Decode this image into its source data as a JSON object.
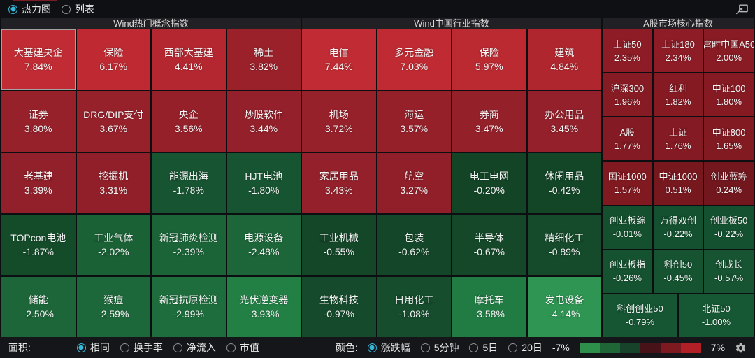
{
  "topbar": {
    "view_options": [
      {
        "label": "热力图",
        "selected": true
      },
      {
        "label": "列表",
        "selected": false
      }
    ]
  },
  "panels": [
    {
      "title": "Wind热门概念指数",
      "grid_columns": 4,
      "default_span": 1,
      "tiles": [
        {
          "name": "大基建央企",
          "value": "7.84%",
          "color": "#c12b33",
          "highlighted": true
        },
        {
          "name": "保险",
          "value": "6.17%",
          "color": "#bf2a32"
        },
        {
          "name": "西部大基建",
          "value": "4.41%",
          "color": "#b42730"
        },
        {
          "name": "稀土",
          "value": "3.82%",
          "color": "#9a202a"
        },
        {
          "name": "证券",
          "value": "3.80%",
          "color": "#97212b"
        },
        {
          "name": "DRG/DIP支付",
          "value": "3.67%",
          "color": "#96212b"
        },
        {
          "name": "央企",
          "value": "3.56%",
          "color": "#95202a"
        },
        {
          "name": "炒股软件",
          "value": "3.44%",
          "color": "#93202a"
        },
        {
          "name": "老基建",
          "value": "3.39%",
          "color": "#92202a"
        },
        {
          "name": "挖掘机",
          "value": "3.31%",
          "color": "#911f29"
        },
        {
          "name": "能源出海",
          "value": "-1.78%",
          "color": "#175432"
        },
        {
          "name": "HJT电池",
          "value": "-1.80%",
          "color": "#175432"
        },
        {
          "name": "TOPcon电池",
          "value": "-1.87%",
          "color": "#144c2a"
        },
        {
          "name": "工业气体",
          "value": "-2.02%",
          "color": "#1a6136"
        },
        {
          "name": "新冠肺炎检测",
          "value": "-2.39%",
          "color": "#1b6438"
        },
        {
          "name": "电源设备",
          "value": "-2.48%",
          "color": "#1c6639"
        },
        {
          "name": "储能",
          "value": "-2.50%",
          "color": "#1c6639"
        },
        {
          "name": "猴痘",
          "value": "-2.59%",
          "color": "#1d683a"
        },
        {
          "name": "新冠抗原检测",
          "value": "-2.99%",
          "color": "#1e6e3d"
        },
        {
          "name": "光伏逆变器",
          "value": "-3.93%",
          "color": "#228045"
        }
      ]
    },
    {
      "title": "Wind中国行业指数",
      "grid_columns": 4,
      "default_span": 1,
      "tiles": [
        {
          "name": "电信",
          "value": "7.44%",
          "color": "#c12b33"
        },
        {
          "name": "多元金融",
          "value": "7.03%",
          "color": "#c02a32"
        },
        {
          "name": "保险",
          "value": "5.97%",
          "color": "#bb2931"
        },
        {
          "name": "建筑",
          "value": "4.84%",
          "color": "#b0262e"
        },
        {
          "name": "机场",
          "value": "3.72%",
          "color": "#97212b"
        },
        {
          "name": "海运",
          "value": "3.57%",
          "color": "#95202a"
        },
        {
          "name": "券商",
          "value": "3.47%",
          "color": "#94202a"
        },
        {
          "name": "办公用品",
          "value": "3.45%",
          "color": "#93202a"
        },
        {
          "name": "家居用品",
          "value": "3.43%",
          "color": "#93202a"
        },
        {
          "name": "航空",
          "value": "3.27%",
          "color": "#901f29"
        },
        {
          "name": "电工电网",
          "value": "-0.20%",
          "color": "#134426"
        },
        {
          "name": "休闲用品",
          "value": "-0.42%",
          "color": "#134527"
        },
        {
          "name": "工业机械",
          "value": "-0.55%",
          "color": "#144628"
        },
        {
          "name": "包装",
          "value": "-0.62%",
          "color": "#144729"
        },
        {
          "name": "半导体",
          "value": "-0.67%",
          "color": "#144829"
        },
        {
          "name": "精细化工",
          "value": "-0.89%",
          "color": "#154a2b"
        },
        {
          "name": "生物科技",
          "value": "-0.97%",
          "color": "#154b2c"
        },
        {
          "name": "日用化工",
          "value": "-1.08%",
          "color": "#164d2d"
        },
        {
          "name": "摩托车",
          "value": "-3.58%",
          "color": "#217c43"
        },
        {
          "name": "发电设备",
          "value": "-4.14%",
          "color": "#2e9553"
        }
      ]
    },
    {
      "title": "A股市场核心指数",
      "grid_columns": 6,
      "default_span": 2,
      "tiles": [
        {
          "name": "上证50",
          "value": "2.35%",
          "color": "#8d1c26"
        },
        {
          "name": "上证180",
          "value": "2.34%",
          "color": "#8d1c26"
        },
        {
          "name": "富时中国A50",
          "value": "2.00%",
          "color": "#881b24"
        },
        {
          "name": "沪深300",
          "value": "1.96%",
          "color": "#871b24"
        },
        {
          "name": "红利",
          "value": "1.82%",
          "color": "#851a23"
        },
        {
          "name": "中证100",
          "value": "1.80%",
          "color": "#851a23"
        },
        {
          "name": "A股",
          "value": "1.77%",
          "color": "#841a23"
        },
        {
          "name": "上证",
          "value": "1.76%",
          "color": "#841a23"
        },
        {
          "name": "中证800",
          "value": "1.65%",
          "color": "#821a22"
        },
        {
          "name": "国证1000",
          "value": "1.57%",
          "color": "#811921"
        },
        {
          "name": "中证1000",
          "value": "0.51%",
          "color": "#77181f"
        },
        {
          "name": "创业蓝筹",
          "value": "0.24%",
          "color": "#72171e"
        },
        {
          "name": "创业板综",
          "value": "-0.01%",
          "color": "#14502e"
        },
        {
          "name": "万得双创",
          "value": "-0.22%",
          "color": "#145130"
        },
        {
          "name": "创业板50",
          "value": "-0.22%",
          "color": "#145130"
        },
        {
          "name": "创业板指",
          "value": "-0.26%",
          "color": "#155230"
        },
        {
          "name": "科创50",
          "value": "-0.45%",
          "color": "#155331"
        },
        {
          "name": "创成长",
          "value": "-0.57%",
          "color": "#165432"
        },
        {
          "name": "科创创业50",
          "value": "-0.79%",
          "color": "#165633",
          "span": 3
        },
        {
          "name": "北证50",
          "value": "-1.00%",
          "color": "#175834",
          "span": 3
        }
      ]
    }
  ],
  "bottombar": {
    "area_label": "面积:",
    "area_options": [
      {
        "label": "相同",
        "selected": true
      },
      {
        "label": "换手率",
        "selected": false
      },
      {
        "label": "净流入",
        "selected": false
      },
      {
        "label": "市值",
        "selected": false
      }
    ],
    "color_label": "颜色:",
    "color_options": [
      {
        "label": "涨跌幅",
        "selected": true
      },
      {
        "label": "5分钟",
        "selected": false
      },
      {
        "label": "5日",
        "selected": false
      },
      {
        "label": "20日",
        "selected": false
      }
    ],
    "scale_min": "-7%",
    "scale_max": "7%",
    "gradient_colors": [
      "#2e8f4b",
      "#1f6636",
      "#16432a",
      "#471318",
      "#7d1920",
      "#b02026"
    ]
  },
  "theme": {
    "accent_cyan": "#35b8d8",
    "background": "#0c0e12",
    "header_bg": "#212125",
    "icon_color": "#b8b8b8"
  }
}
